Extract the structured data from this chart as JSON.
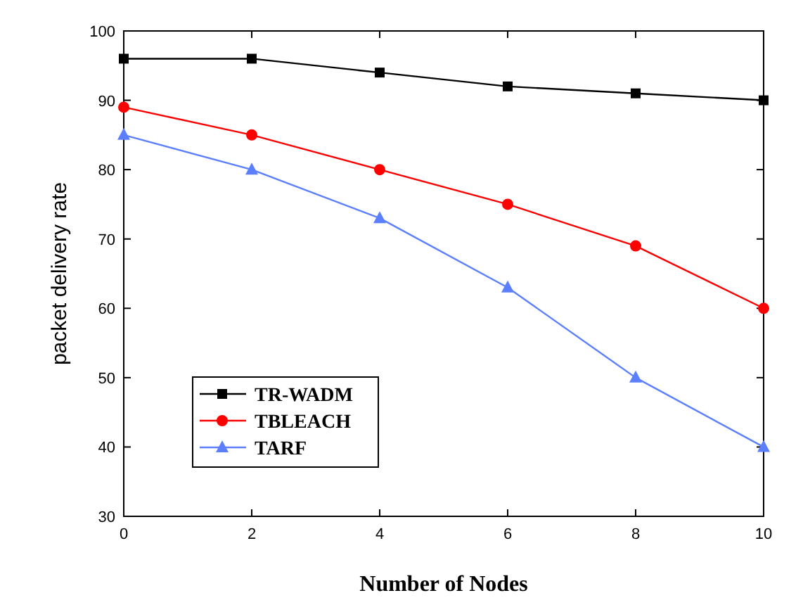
{
  "chart_data": {
    "type": "line",
    "xlabel": "Number of Nodes",
    "ylabel": "packet delivery rate",
    "x": [
      0,
      2,
      4,
      6,
      8,
      10
    ],
    "series": [
      {
        "name": "TR-WADM",
        "color": "#000000",
        "marker": "square",
        "values": [
          96,
          96,
          94,
          92,
          91,
          90
        ]
      },
      {
        "name": "TBLEACH",
        "color": "#ff0000",
        "marker": "circle",
        "values": [
          89,
          85,
          80,
          75,
          69,
          60
        ]
      },
      {
        "name": "TARF",
        "color": "#5b7fff",
        "marker": "triangle",
        "values": [
          85,
          80,
          73,
          63,
          50,
          40
        ]
      }
    ],
    "xlim": [
      0,
      10
    ],
    "xticks": [
      0,
      2,
      4,
      6,
      8,
      10
    ],
    "ylim": [
      30,
      100
    ],
    "yticks": [
      30,
      40,
      50,
      60,
      70,
      80,
      90,
      100
    ],
    "grid": false,
    "legend": "bottom left"
  }
}
